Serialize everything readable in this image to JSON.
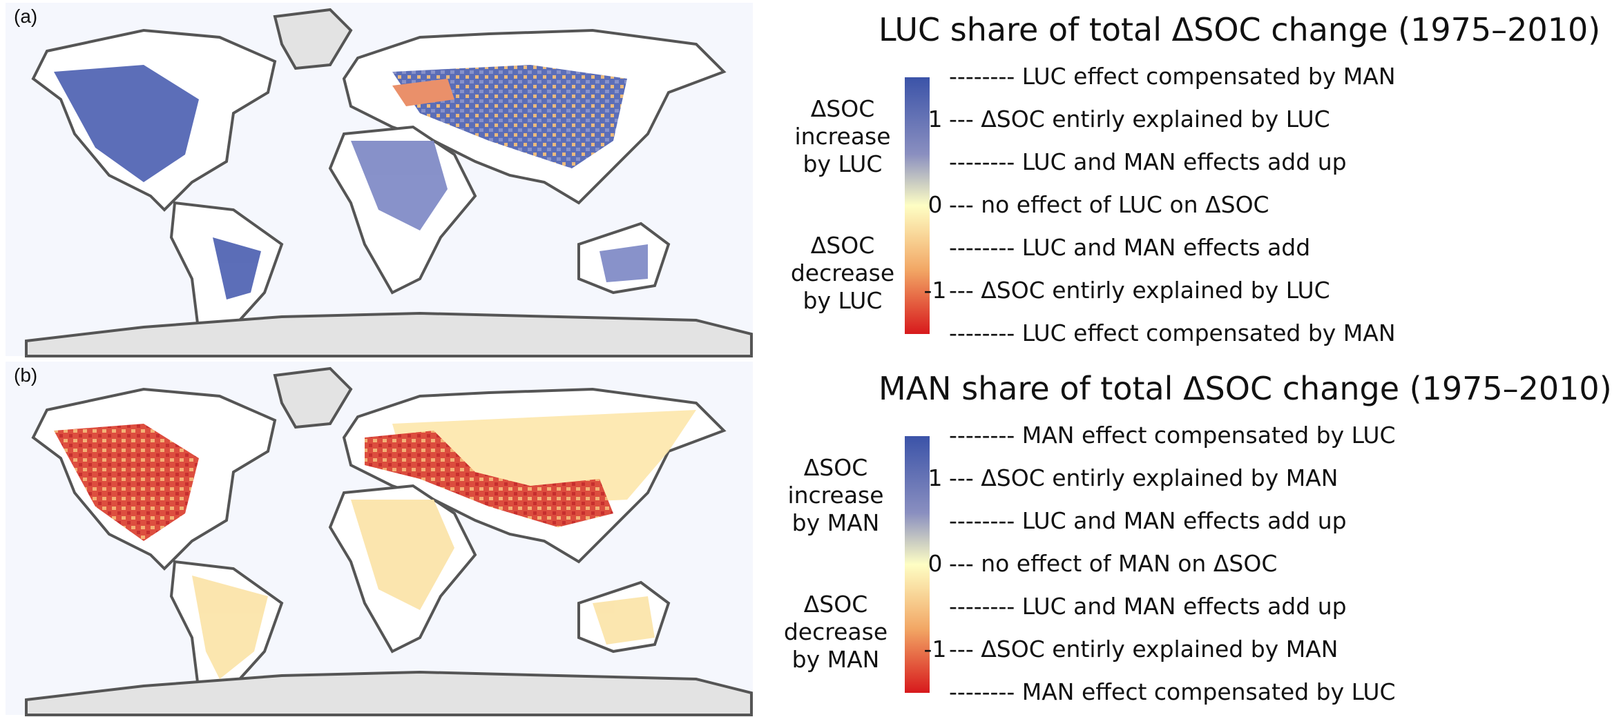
{
  "panels": [
    {
      "label": "(a)",
      "title": "LUC share of total ΔSOC change (1975–2010)",
      "upper_label": [
        "ΔSOC",
        "increase",
        "by LUC"
      ],
      "lower_label": [
        "ΔSOC",
        "decrease",
        "by LUC"
      ],
      "legend_rows": [
        {
          "num": "",
          "text": "-------- LUC effect compensated by MAN"
        },
        {
          "num": "1",
          "text": "--- ΔSOC entirly explained by LUC"
        },
        {
          "num": "",
          "text": "-------- LUC and MAN effects add up"
        },
        {
          "num": "0",
          "text": "--- no effect of LUC on ΔSOC"
        },
        {
          "num": "",
          "text": "-------- LUC and MAN effects add"
        },
        {
          "num": "-1",
          "text": "--- ΔSOC entirly explained by LUC"
        },
        {
          "num": "",
          "text": "-------- LUC effect compensated by MAN"
        }
      ]
    },
    {
      "label": "(b)",
      "title": "MAN share of total ΔSOC change (1975–2010)",
      "upper_label": [
        "ΔSOC",
        "increase",
        "by MAN"
      ],
      "lower_label": [
        "ΔSOC",
        "decrease",
        "by MAN"
      ],
      "legend_rows": [
        {
          "num": "",
          "text": "-------- MAN effect compensated by LUC"
        },
        {
          "num": "1",
          "text": "--- ΔSOC entirly explained by MAN"
        },
        {
          "num": "",
          "text": "-------- LUC and MAN effects add up"
        },
        {
          "num": "0",
          "text": "--- no effect of MAN on ΔSOC"
        },
        {
          "num": "",
          "text": "-------- LUC and MAN effects add up"
        },
        {
          "num": "-1",
          "text": "--- ΔSOC entirly explained by MAN"
        },
        {
          "num": "",
          "text": "-------- MAN effect compensated by LUC"
        }
      ]
    }
  ],
  "colors": {
    "scale_top": "#3b53a8",
    "scale_upper_mid": "#8a8fc0",
    "scale_mid": "#fefec4",
    "scale_lower_mid": "#f2a765",
    "scale_bottom": "#d7191c",
    "land_blank": "#ffffff",
    "ice": "#e3e3e3",
    "coast": "#555555",
    "ocean": "#f5f7fd"
  }
}
